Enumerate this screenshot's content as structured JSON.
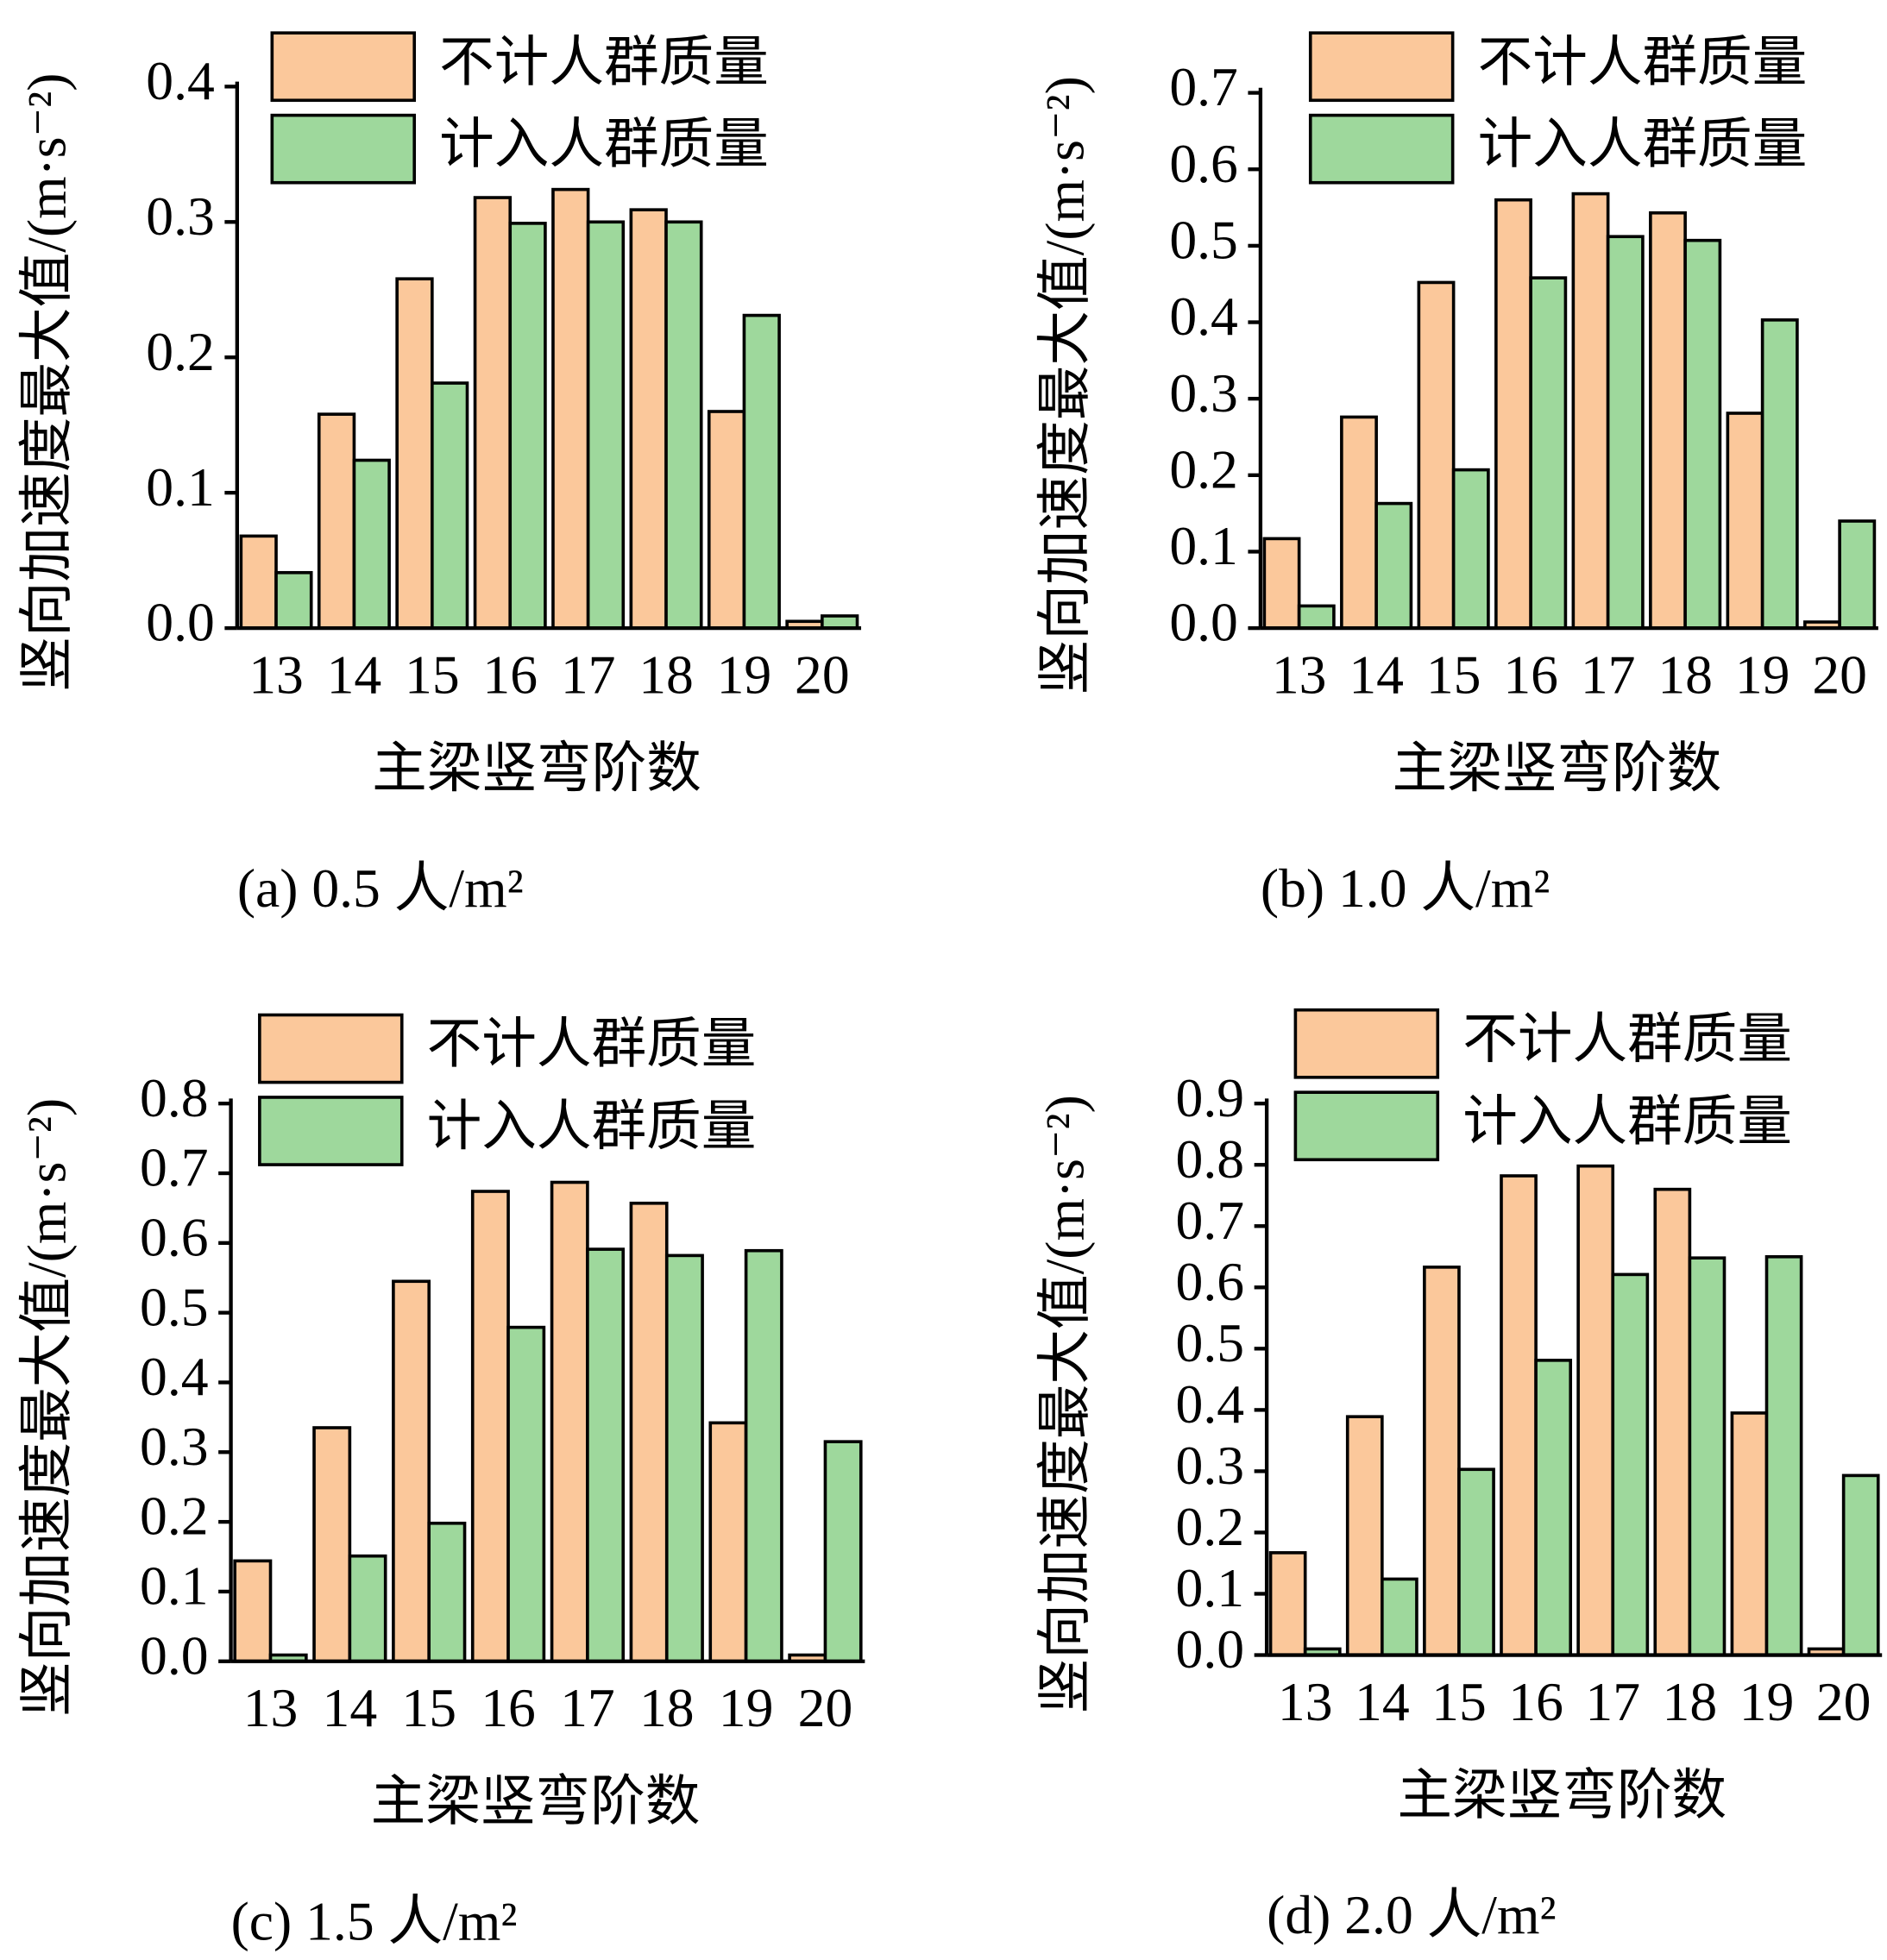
{
  "chart_data": [
    {
      "type": "bar",
      "y_label": "竖向加速度最大值/(m·s⁻²)",
      "x_label": "主梁竖弯阶数",
      "caption": "(a) 0.5 人/m²",
      "categories": [
        "13",
        "14",
        "15",
        "16",
        "17",
        "18",
        "19",
        "20"
      ],
      "series": [
        {
          "name": "不计人群质量",
          "color": "#fbc89b",
          "values": [
            0.068,
            0.158,
            0.258,
            0.318,
            0.324,
            0.309,
            0.16,
            0.005
          ]
        },
        {
          "name": "计入人群质量",
          "color": "#9ed89c",
          "values": [
            0.041,
            0.124,
            0.181,
            0.299,
            0.3,
            0.3,
            0.231,
            0.009
          ]
        }
      ],
      "ylim": [
        0,
        0.4
      ],
      "yticks": [
        {
          "value": 0,
          "label": "0.0"
        },
        0.1,
        0.2,
        0.3,
        0.4
      ]
    },
    {
      "type": "bar",
      "y_label": "竖向加速度最大值/(m·s⁻²)",
      "x_label": "主梁竖弯阶数",
      "caption": "(b) 1.0 人/m²",
      "categories": [
        "13",
        "14",
        "15",
        "16",
        "17",
        "18",
        "19",
        "20"
      ],
      "series": [
        {
          "name": "不计人群质量",
          "color": "#fbc89b",
          "values": [
            0.117,
            0.276,
            0.452,
            0.56,
            0.568,
            0.543,
            0.281,
            0.008
          ]
        },
        {
          "name": "计入人群质量",
          "color": "#9ed89c",
          "values": [
            0.029,
            0.163,
            0.207,
            0.458,
            0.512,
            0.507,
            0.403,
            0.14
          ]
        }
      ],
      "ylim": [
        0,
        0.7
      ],
      "yticks": [
        {
          "value": 0,
          "label": "0.0"
        },
        0.1,
        0.2,
        0.3,
        0.4,
        0.5,
        0.6,
        0.7
      ]
    },
    {
      "type": "bar",
      "y_label": "竖向加速度最大值/(m·s⁻²)",
      "x_label": "主梁竖弯阶数",
      "caption": "(c) 1.5 人/m²",
      "categories": [
        "13",
        "14",
        "15",
        "16",
        "17",
        "18",
        "19",
        "20"
      ],
      "series": [
        {
          "name": "不计人群质量",
          "color": "#fbc89b",
          "values": [
            0.144,
            0.335,
            0.545,
            0.674,
            0.687,
            0.657,
            0.342,
            0.009
          ]
        },
        {
          "name": "计入人群质量",
          "color": "#9ed89c",
          "values": [
            0.009,
            0.151,
            0.198,
            0.479,
            0.591,
            0.582,
            0.589,
            0.315
          ]
        }
      ],
      "ylim": [
        0,
        0.8
      ],
      "yticks": [
        {
          "value": 0,
          "label": "0.0"
        },
        0.1,
        0.2,
        0.3,
        0.4,
        0.5,
        0.6,
        0.7,
        0.8
      ]
    },
    {
      "type": "bar",
      "y_label": "竖向加速度最大值/(m·s⁻²)",
      "x_label": "主梁竖弯阶数",
      "caption": "(d) 2.0 人/m²",
      "categories": [
        "13",
        "14",
        "15",
        "16",
        "17",
        "18",
        "19",
        "20"
      ],
      "series": [
        {
          "name": "不计人群质量",
          "color": "#fbc89b",
          "values": [
            0.167,
            0.389,
            0.633,
            0.782,
            0.798,
            0.76,
            0.395,
            0.01
          ]
        },
        {
          "name": "计入人群质量",
          "color": "#9ed89c",
          "values": [
            0.01,
            0.124,
            0.303,
            0.481,
            0.621,
            0.648,
            0.65,
            0.293
          ]
        }
      ],
      "ylim": [
        0,
        0.9
      ],
      "yticks": [
        {
          "value": 0,
          "label": "0.0"
        },
        0.1,
        0.2,
        0.3,
        0.4,
        0.5,
        0.6,
        0.7,
        0.8,
        0.9
      ]
    }
  ]
}
